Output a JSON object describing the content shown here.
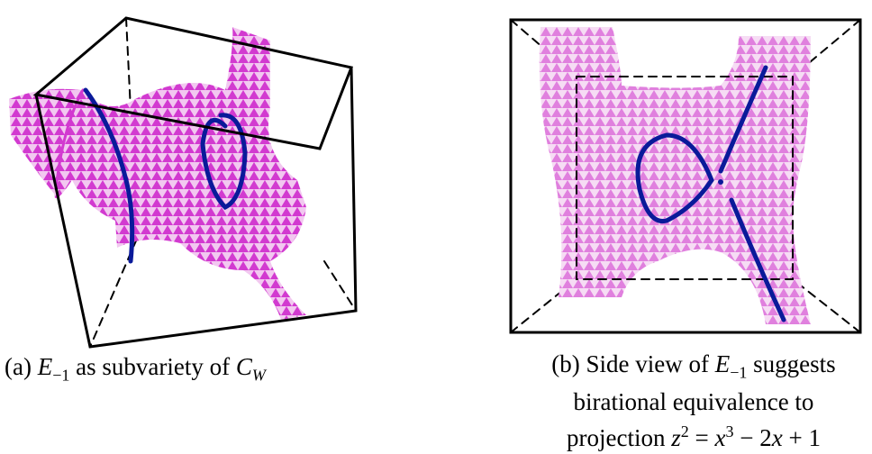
{
  "figure_a": {
    "caption": [
      "(a) ",
      "E",
      "−1",
      " as subvariety of ",
      "C",
      "W"
    ]
  },
  "figure_b": {
    "caption": [
      [
        "(b) Side view of ",
        "E",
        "−1",
        " suggests"
      ],
      [
        "birational equivalence to"
      ],
      [
        "projection ",
        "z",
        "2",
        " = ",
        "x",
        "3",
        " − 2",
        "x",
        " + 1"
      ]
    ]
  }
}
